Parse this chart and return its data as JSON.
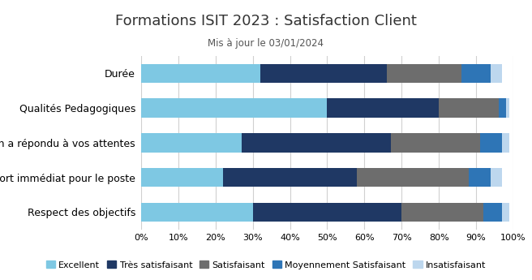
{
  "title": "Formations ISIT 2023 : Satisfaction Client",
  "subtitle": "Mis à jour le 03/01/2024",
  "categories": [
    "Durée",
    "Qualités Pedagogiques",
    "La formation a répondu à vos attentes",
    "Apport immédiat pour le poste",
    "Respect des objectifs"
  ],
  "series": {
    "Excellent": [
      32,
      50,
      27,
      22,
      30
    ],
    "Très satisfaisant": [
      34,
      30,
      40,
      36,
      40
    ],
    "Satisfaisant": [
      20,
      16,
      24,
      30,
      22
    ],
    "Moyennement Satisfaisant": [
      8,
      2,
      6,
      6,
      5
    ],
    "Insatisfaisant": [
      3,
      1,
      2,
      3,
      2
    ]
  },
  "colors": {
    "Excellent": "#7EC8E3",
    "Très satisfaisant": "#1F3864",
    "Satisfaisant": "#6D6D6D",
    "Moyennement Satisfaisant": "#2E75B6",
    "Insatisfaisant": "#BDD7EE"
  },
  "legend_order": [
    "Excellent",
    "Très satisfaisant",
    "Satisfaisant",
    "Moyennement Satisfaisant",
    "Insatisfaisant"
  ],
  "xlim": [
    0,
    100
  ],
  "background_color": "#ffffff",
  "grid_color": "#d0d0d0",
  "title_fontsize": 13,
  "subtitle_fontsize": 8.5,
  "label_fontsize": 9,
  "tick_fontsize": 8,
  "legend_fontsize": 8
}
